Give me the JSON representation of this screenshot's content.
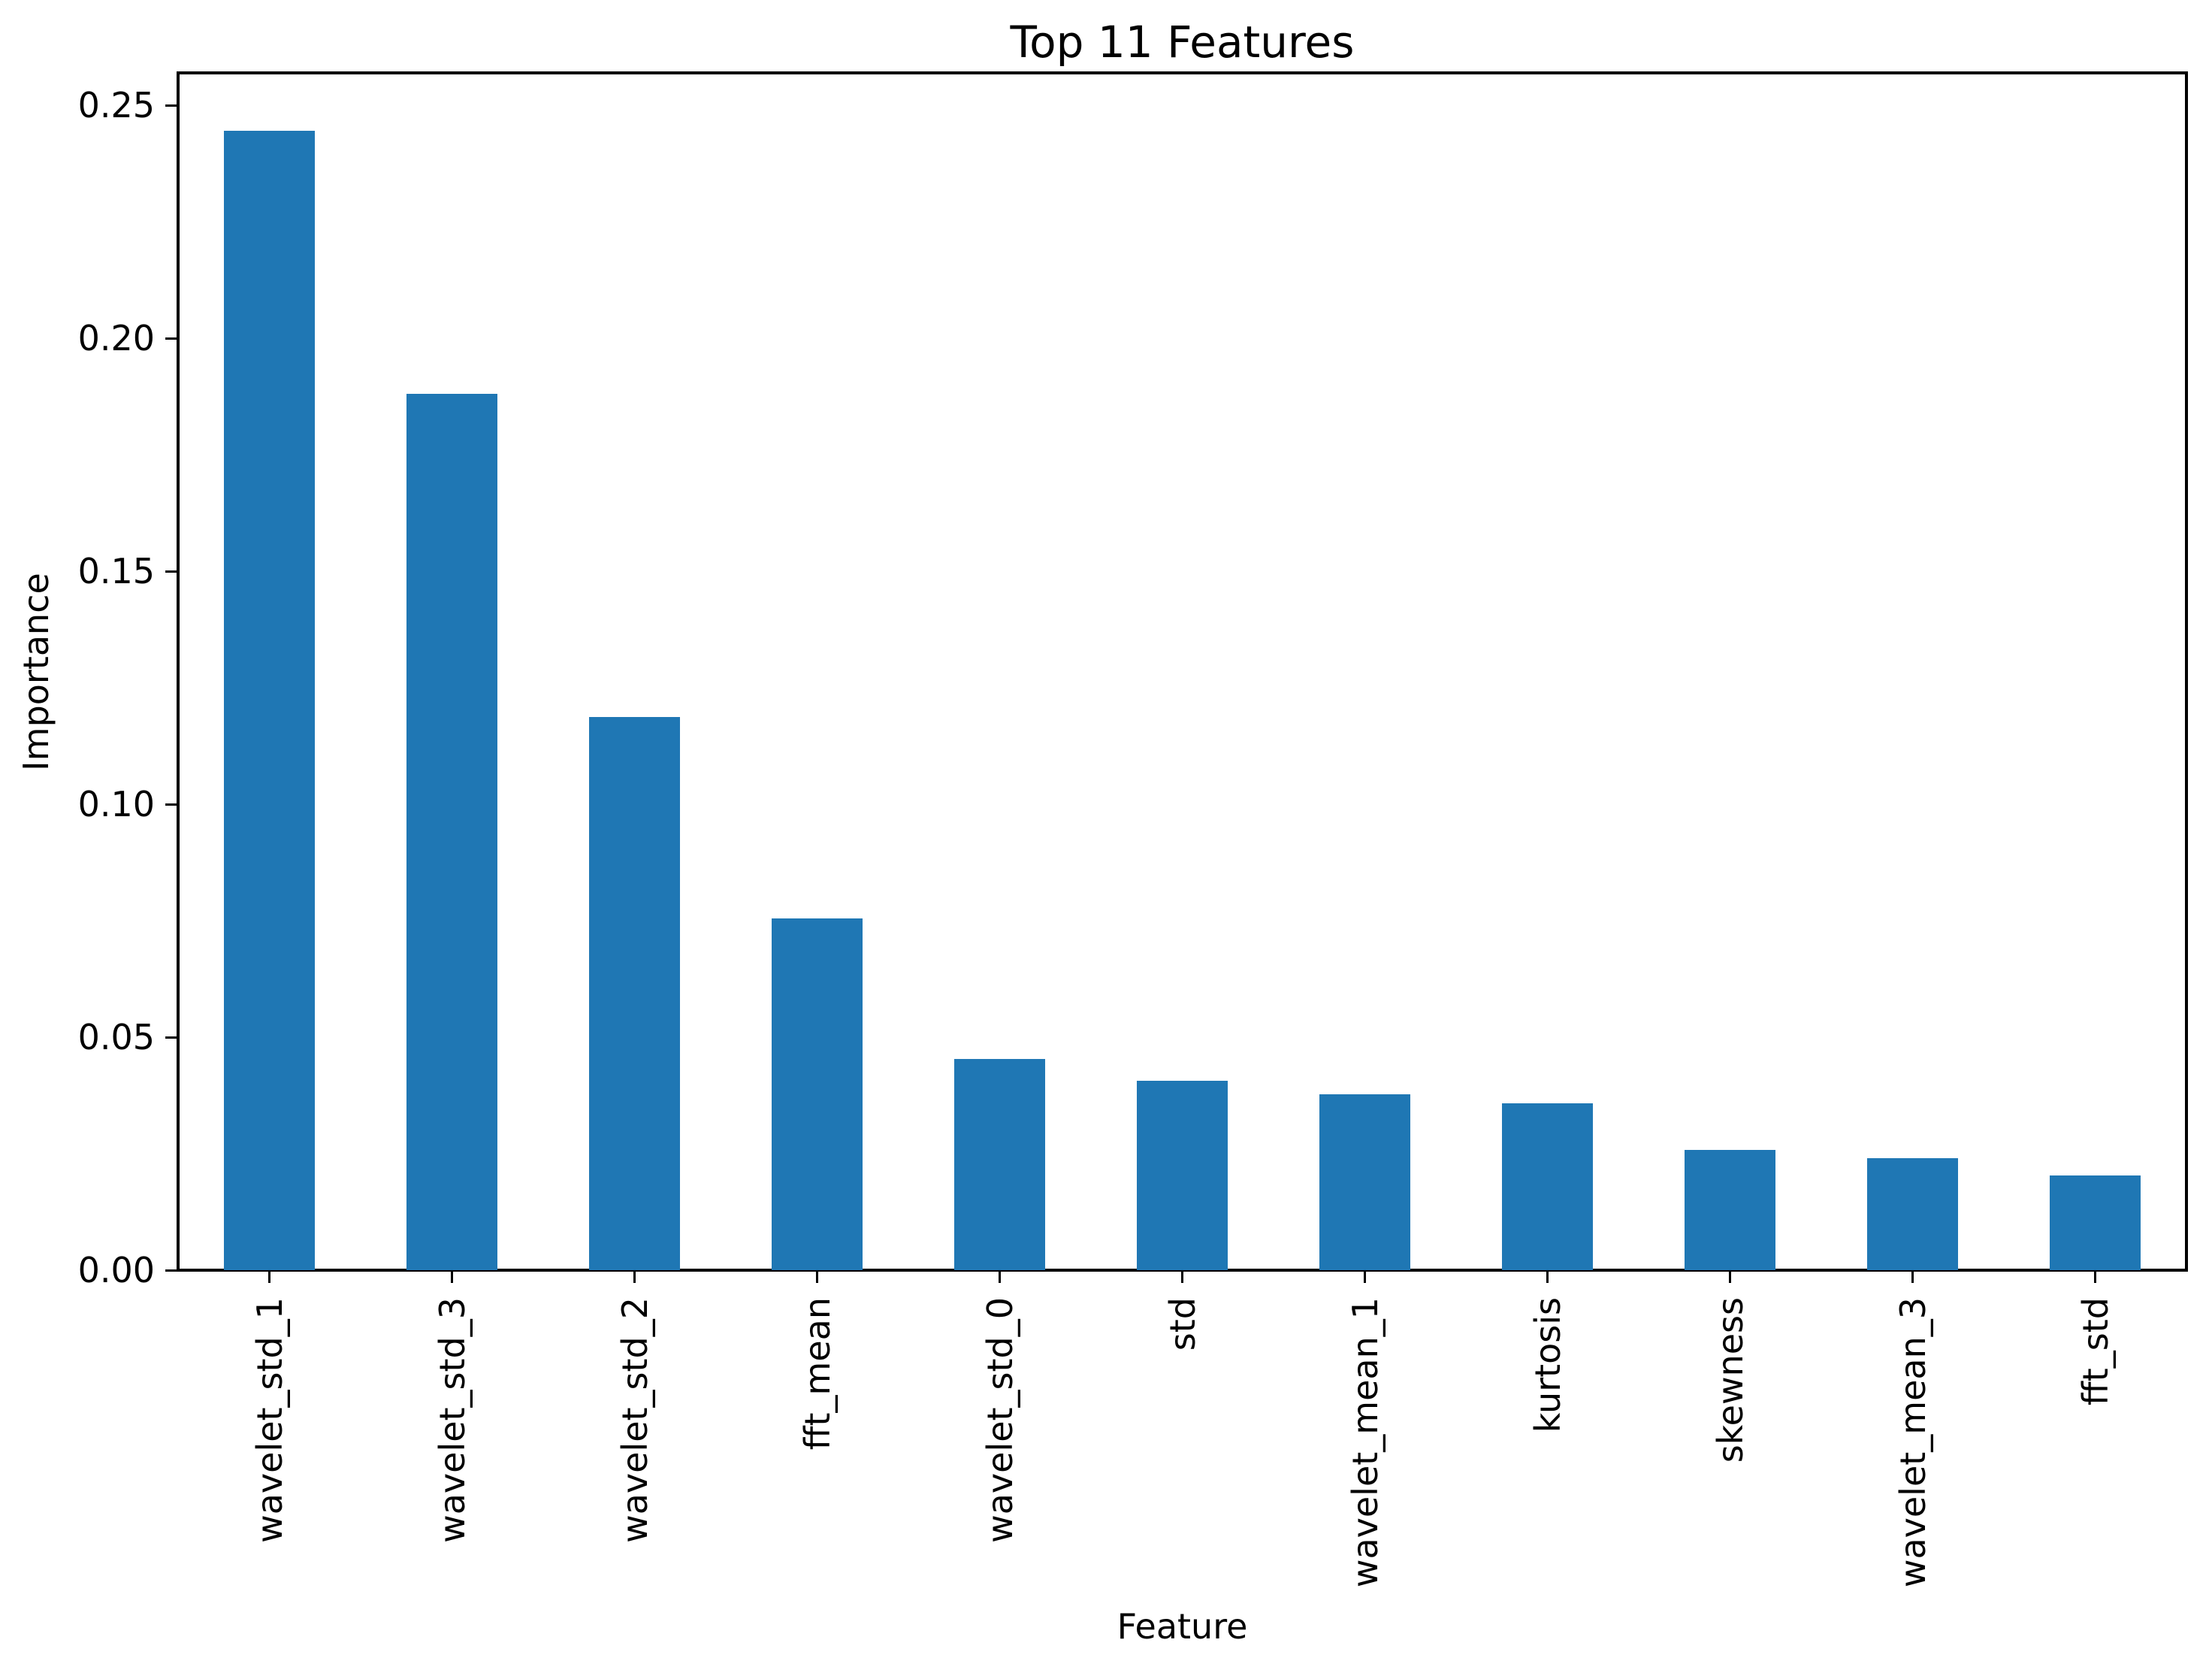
{
  "chart_data": {
    "type": "bar",
    "title": "Top 11 Features",
    "xlabel": "Feature",
    "ylabel": "Importance",
    "categories": [
      "wavelet_std_1",
      "wavelet_std_3",
      "wavelet_std_2",
      "fft_mean",
      "wavelet_std_0",
      "std",
      "wavelet_mean_1",
      "kurtosis",
      "skewness",
      "wavelet_mean_3",
      "fft_std"
    ],
    "values": [
      0.2445,
      0.188,
      0.1187,
      0.0755,
      0.0453,
      0.0406,
      0.0377,
      0.0358,
      0.0258,
      0.024,
      0.0203
    ],
    "ylim": [
      0,
      0.2569
    ],
    "yticks": [
      0.0,
      0.05,
      0.1,
      0.15,
      0.2,
      0.25
    ],
    "ytick_labels": [
      "0.00",
      "0.05",
      "0.10",
      "0.15",
      "0.20",
      "0.25"
    ],
    "x_tick_rotation": 90,
    "bar_color": "#1f77b4",
    "axis_color": "#000000",
    "background_color": "#ffffff",
    "grid": false,
    "legend": null
  }
}
